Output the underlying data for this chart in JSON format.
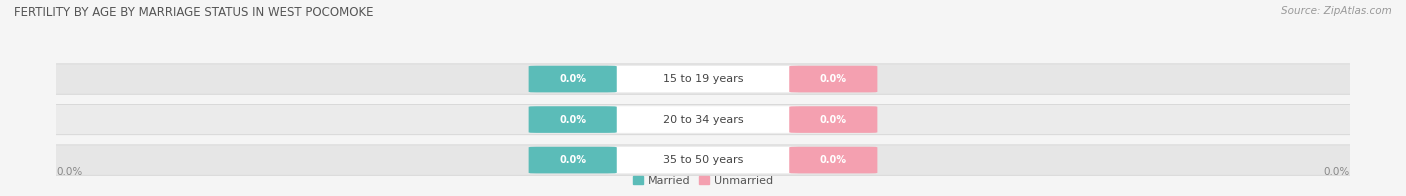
{
  "title": "FERTILITY BY AGE BY MARRIAGE STATUS IN WEST POCOMOKE",
  "source": "Source: ZipAtlas.com",
  "age_groups": [
    "15 to 19 years",
    "20 to 34 years",
    "35 to 50 years"
  ],
  "married_values": [
    0.0,
    0.0,
    0.0
  ],
  "unmarried_values": [
    0.0,
    0.0,
    0.0
  ],
  "married_color": "#5bbcb8",
  "unmarried_color": "#f4a0b0",
  "row_bg_color": "#e8e8e8",
  "row_bg_alt_color": "#f0f0f0",
  "fig_bg_color": "#f5f5f5",
  "title_color": "#555555",
  "source_color": "#999999",
  "axis_label": "0.0%",
  "figsize": [
    14.06,
    1.96
  ],
  "dpi": 100,
  "legend_married": "Married",
  "legend_unmarried": "Unmarried",
  "title_fontsize": 8.5,
  "source_fontsize": 7.5,
  "pill_label_fontsize": 7,
  "age_label_fontsize": 8,
  "legend_fontsize": 8,
  "axis_tick_fontsize": 7.5,
  "xlim_left": -1.0,
  "xlim_right": 1.0
}
